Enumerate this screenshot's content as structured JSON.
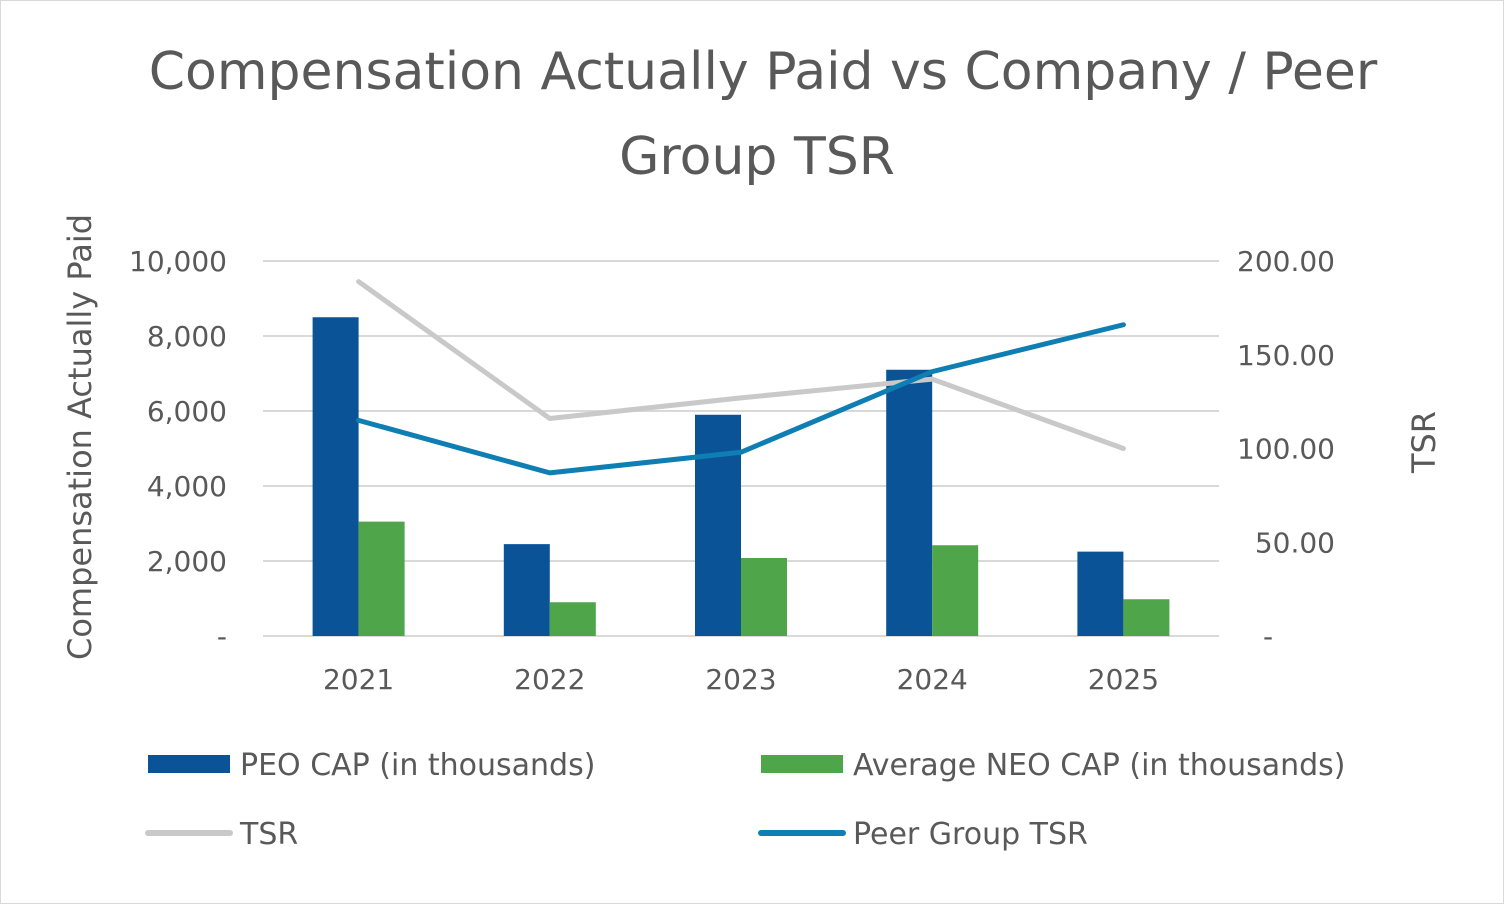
{
  "chart_data": {
    "type": "bar",
    "title_lines": [
      "Compensation Actually Paid vs Company / Peer",
      "Group TSR"
    ],
    "ylabel": "Compensation Actually Paid",
    "y2label": "TSR",
    "categories": [
      "2021",
      "2022",
      "2023",
      "2024",
      "2025"
    ],
    "ylim": [
      0,
      10000
    ],
    "y2lim": [
      0,
      200
    ],
    "y_ticks": [
      {
        "value": 0,
        "label": "-"
      },
      {
        "value": 2000,
        "label": "2,000"
      },
      {
        "value": 4000,
        "label": "4,000"
      },
      {
        "value": 6000,
        "label": "6,000"
      },
      {
        "value": 8000,
        "label": "8,000"
      },
      {
        "value": 10000,
        "label": "10,000"
      }
    ],
    "y2_ticks": [
      {
        "value": 0,
        "label": "-"
      },
      {
        "value": 50,
        "label": "50.00"
      },
      {
        "value": 100,
        "label": "100.00"
      },
      {
        "value": 150,
        "label": "150.00"
      },
      {
        "value": 200,
        "label": "200.00"
      }
    ],
    "grid": true,
    "legend_position": "bottom",
    "bar_series": [
      {
        "name": "PEO CAP (in thousands)",
        "color": "#0a5397",
        "values": [
          8500,
          2450,
          5900,
          7100,
          2250
        ]
      },
      {
        "name": "Average NEO CAP (in thousands)",
        "color": "#4ea54a",
        "values": [
          3050,
          900,
          2080,
          2420,
          980
        ]
      }
    ],
    "line_series": [
      {
        "name": "TSR",
        "color": "#c9c9c9",
        "axis": "right",
        "values": [
          189,
          116,
          127,
          137,
          100
        ]
      },
      {
        "name": "Peer Group TSR",
        "color": "#0f7fb3",
        "axis": "right",
        "values": [
          115,
          87,
          98,
          141,
          166
        ]
      }
    ]
  }
}
